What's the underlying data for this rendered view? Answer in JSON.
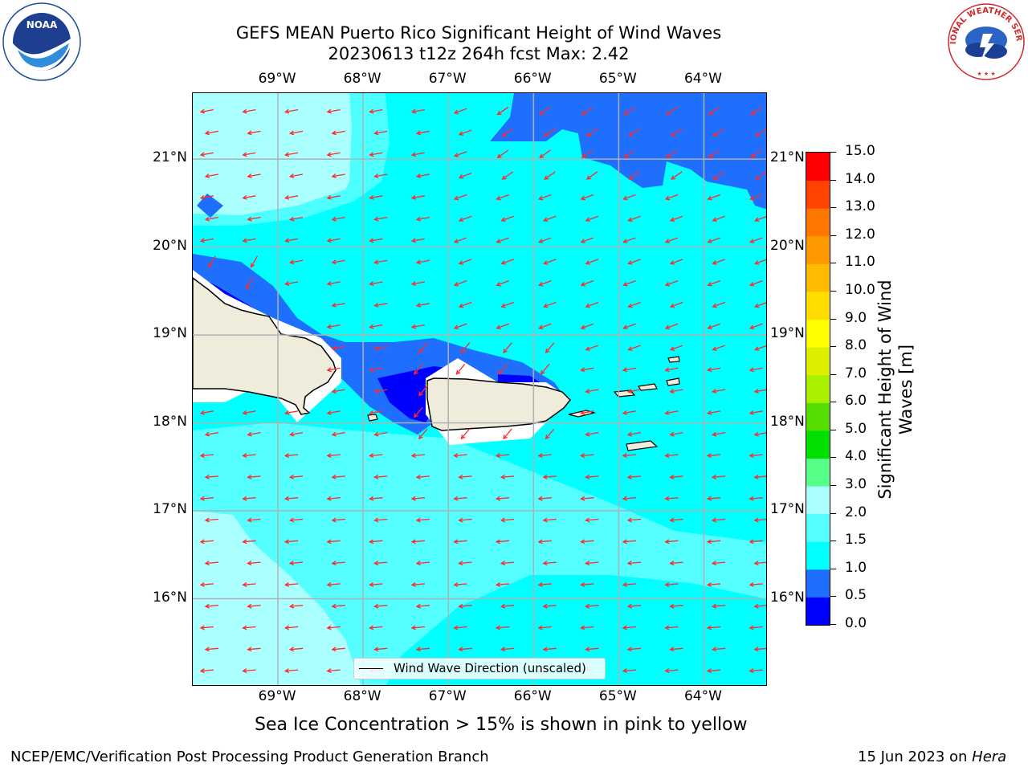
{
  "header": {
    "title_line1": "GEFS MEAN Puerto Rico Significant Height of Wind Waves",
    "title_line2": "20230613 t12z 264h fcst   Max: 2.42"
  },
  "logos": {
    "left": {
      "name": "NOAA",
      "ring_text": "NATIONAL OCEANIC AND ATMOSPHERIC ADMINISTRATION · U.S. DEPARTMENT OF COMMERCE",
      "color": "#1e4e9c"
    },
    "right": {
      "ring_text": "NATIONAL WEATHER SERVICE",
      "color": "#d22a2a"
    }
  },
  "map": {
    "lon_labels": [
      "69°W",
      "68°W",
      "67°W",
      "66°W",
      "65°W",
      "64°W"
    ],
    "lat_labels": [
      "21°N",
      "20°N",
      "19°N",
      "18°N",
      "17°N",
      "16°N"
    ],
    "lon_range": [
      -70.0,
      -63.25
    ],
    "lat_range": [
      15.0,
      21.75
    ],
    "gridlines": true,
    "arrow_color": "#ff2a2a",
    "land_color": "#efecdc",
    "legend_label": "Wind Wave Direction (unscaled)"
  },
  "colorbar": {
    "label_line1": "Significant Height of Wind",
    "label_line2": "Waves [m]",
    "ticks": [
      "0.0",
      "0.5",
      "1.0",
      "1.5",
      "2.0",
      "3.0",
      "4.0",
      "5.0",
      "6.0",
      "7.0",
      "8.0",
      "9.0",
      "10.0",
      "11.0",
      "12.0",
      "13.0",
      "14.0",
      "15.0"
    ],
    "colors": [
      "#0000ff",
      "#1f6fff",
      "#00ffff",
      "#55ffff",
      "#aaffff",
      "#55ff88",
      "#00e000",
      "#55dd00",
      "#aaee00",
      "#ddee00",
      "#ffff00",
      "#ffdd00",
      "#ffbb00",
      "#ff9900",
      "#ff7700",
      "#ff4400",
      "#ff0000"
    ]
  },
  "caption": "Sea Ice Concentration > 15% is shown in pink to yellow",
  "footer": {
    "left": "NCEP/EMC/Verification Post Processing Product Generation Branch",
    "right_prefix": "15 Jun 2023 on ",
    "right_host": "Hera"
  }
}
